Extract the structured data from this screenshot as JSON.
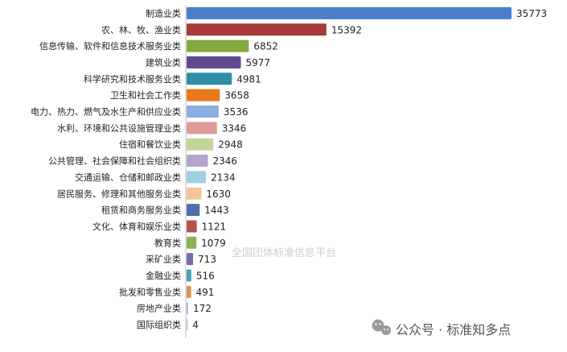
{
  "chart_data": {
    "type": "bar",
    "orientation": "horizontal",
    "categories": [
      "制造业类",
      "农、林、牧、渔业类",
      "信息传输、软件和信息技术服务业类",
      "建筑业类",
      "科学研究和技术服务业类",
      "卫生和社会工作类",
      "电力、热力、燃气及水生产和供应业类",
      "水利、环境和公共设施管理业类",
      "住宿和餐饮业类",
      "公共管理、社会保障和社会组织类",
      "交通运输、仓储和邮政业类",
      "居民服务、修理和其他服务业类",
      "租赁和商务服务业类",
      "文化、体育和娱乐业类",
      "教育类",
      "采矿业类",
      "金融业类",
      "批发和零售业类",
      "房地产业类",
      "国际组织类"
    ],
    "values": [
      35773,
      15392,
      6852,
      5977,
      4981,
      3658,
      3536,
      3346,
      2948,
      2346,
      2134,
      1630,
      1443,
      1121,
      1079,
      713,
      516,
      491,
      172,
      4
    ],
    "value_labels": [
      "35773",
      "15392",
      "6852",
      "5977",
      "4981",
      "3658",
      "3536",
      "3346",
      "2948",
      "2346",
      "2134",
      "1630",
      "1443",
      "1121",
      "1079",
      "713",
      "516",
      "491",
      "172",
      "4"
    ],
    "colors": [
      "#4a7ec9",
      "#a83a3a",
      "#86a83c",
      "#5e4a8c",
      "#2f8fa8",
      "#e87a1e",
      "#8aaee0",
      "#de9a9a",
      "#c2d69a",
      "#b3a5cf",
      "#9fd0e0",
      "#f5c49a",
      "#4f6fa8",
      "#b85050",
      "#8cb050",
      "#7a6aa8",
      "#4aa0b8",
      "#e0904a",
      "#a0b8e0",
      "#e0a0a0"
    ],
    "xlim": [
      0,
      35773
    ],
    "grid": false,
    "legend": "none"
  },
  "watermark": "全国团体标准信息平台",
  "brand": {
    "icon": "wechat-icon",
    "text": "公众号 · 标准知多点"
  }
}
